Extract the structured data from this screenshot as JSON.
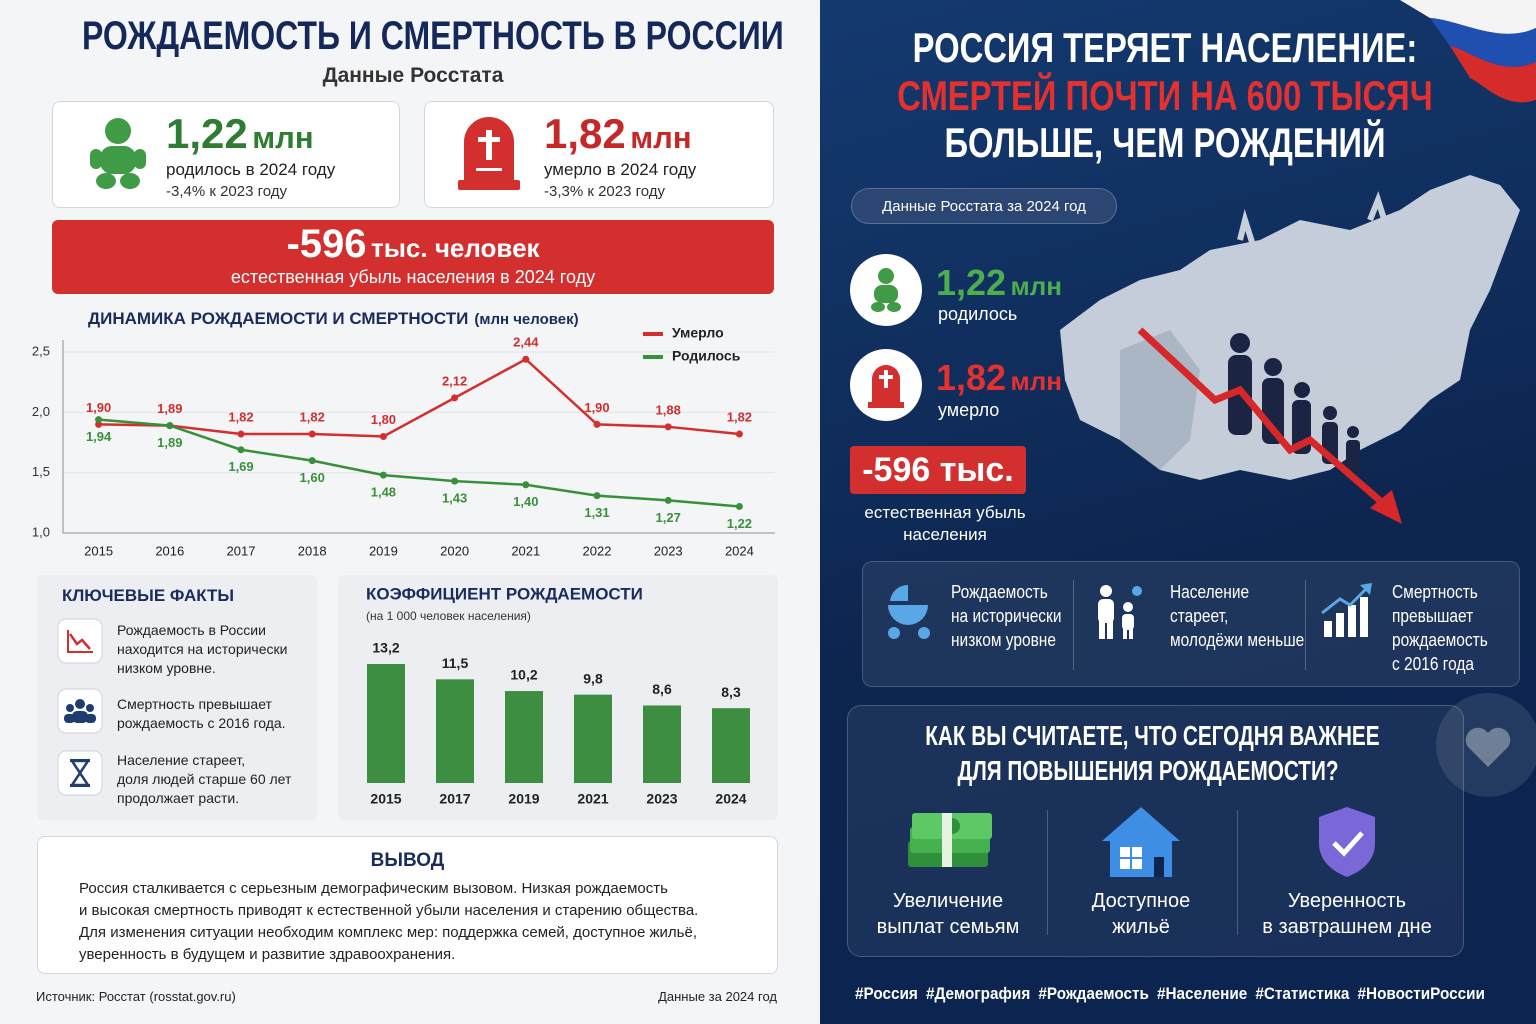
{
  "left": {
    "title": "РОЖДАЕМОСТЬ И СМЕРТНОСТЬ В РОССИИ",
    "subtitle": "Данные Росстата",
    "stats": [
      {
        "value": "1,22",
        "unit": "млн",
        "label": "родилось в 2024 году",
        "change": "-3,4% к 2023 году"
      },
      {
        "value": "1,82",
        "unit": "млн",
        "label": "умерло в 2024 году",
        "change": "-3,3% к 2023 году"
      }
    ],
    "banner": {
      "value": "-596",
      "unit": "тыс. человек",
      "label": "естественная убыль населения в 2024 году"
    },
    "facts": {
      "title": "КЛЮЧЕВЫЕ ФАКТЫ",
      "items": [
        [
          "Рождаемость в России",
          "находится на исторически",
          "низком уровне."
        ],
        [
          "Смертность превышает",
          "рождаемость с 2016 года."
        ],
        [
          "Население стареет,",
          "доля людей старше 60 лет",
          "продолжает расти."
        ]
      ]
    },
    "conclusion": {
      "title": "ВЫВОД",
      "lines": [
        "Россия сталкивается с серьезным демографическим вызовом. Низкая рождаемость",
        "и высокая смертность приводят к естественной убыли населения и старению общества.",
        "Для изменения ситуации необходим комплекс мер: поддержка семей, доступное жильё,",
        "уверенность в будущем и развитие здравоохранения."
      ]
    },
    "source": "Источник: Росстат (rosstat.gov.ru)",
    "date": "Данные за 2024 год"
  },
  "chart_data": [
    {
      "type": "line",
      "title": "ДИНАМИКА РОЖДАЕМОСТИ И СМЕРТНОСТИ",
      "unit": "(млн человек)",
      "x": [
        2015,
        2016,
        2017,
        2018,
        2019,
        2020,
        2021,
        2022,
        2023,
        2024
      ],
      "xlim": [
        2014.5,
        2024.5
      ],
      "xticks": [
        2015,
        2016,
        2017,
        2018,
        2019,
        2020,
        2021,
        2022,
        2023,
        2024
      ],
      "ylim": [
        1,
        2.5
      ],
      "yticks": [
        {
          "value": 1,
          "label": "1,0"
        },
        {
          "value": 1.5,
          "label": "1,5"
        },
        {
          "value": 2,
          "label": "2,0"
        },
        {
          "value": 2.5,
          "label": "2,5"
        }
      ],
      "grid": true,
      "legend": "top-right",
      "series": [
        {
          "name": "Умерло",
          "color": "#d32f2f",
          "values": [
            1.9,
            1.89,
            1.82,
            1.82,
            1.8,
            2.12,
            2.44,
            1.9,
            1.88,
            1.82
          ],
          "value_labels": [
            "1,90",
            "1,89",
            "1,82",
            "1,82",
            "1,80",
            "2,12",
            "2,44",
            "1,90",
            "1,88",
            "1,82"
          ]
        },
        {
          "name": "Родилось",
          "color": "#3a8f3a",
          "values": [
            1.94,
            1.89,
            1.69,
            1.6,
            1.48,
            1.43,
            1.4,
            1.31,
            1.27,
            1.22
          ],
          "value_labels": [
            "1,94",
            "1,89",
            "1,69",
            "1,60",
            "1,48",
            "1,43",
            "1,40",
            "1,31",
            "1,27",
            "1,22"
          ]
        }
      ]
    },
    {
      "type": "bar",
      "title": "КОЭФФИЦИЕНТ РОЖДАЕМОСТИ",
      "subtitle": "(на 1 000 человек населения)",
      "categories": [
        "2015",
        "2017",
        "2019",
        "2021",
        "2023",
        "2024"
      ],
      "values": [
        13.2,
        11.5,
        10.2,
        9.8,
        8.6,
        8.3
      ],
      "value_labels": [
        "13,2",
        "11,5",
        "10,2",
        "9,8",
        "8,6",
        "8,3"
      ],
      "color": "#3e8e41"
    }
  ],
  "right": {
    "title": [
      "РОССИЯ ТЕРЯЕТ НАСЕЛЕНИЕ:",
      "СМЕРТЕЙ ПОЧТИ НА 600 ТЫСЯЧ",
      "БОЛЬШЕ, ЧЕМ РОЖДЕНИЙ"
    ],
    "badge": "Данные Росстата за 2024 год",
    "stats": [
      {
        "value": "1,22",
        "unit": "млн",
        "label": "родилось"
      },
      {
        "value": "1,82",
        "unit": "млн",
        "label": "умерло"
      }
    ],
    "loss": {
      "value": "-596 тыс.",
      "label": [
        "естественная убыль",
        "населения"
      ]
    },
    "features": [
      [
        "Рождаемость",
        "на исторически",
        "низком уровне"
      ],
      [
        "Население",
        "стареет,",
        "молодёжи меньше"
      ],
      [
        "Смертность",
        "превышает",
        "рождаемость",
        "с 2016 года"
      ]
    ],
    "poll": {
      "question": [
        "КАК ВЫ СЧИТАЕТЕ, ЧТО СЕГОДНЯ ВАЖНЕЕ",
        "ДЛЯ ПОВЫШЕНИЯ РОЖДАЕМОСТИ?"
      ],
      "options": [
        [
          "Увеличение",
          "выплат семьям"
        ],
        [
          "Доступное",
          "жильё"
        ],
        [
          "Уверенность",
          "в завтрашнем дне"
        ]
      ]
    },
    "hashtags": [
      "#Россия",
      "#Демография",
      "#Рождаемость",
      "#Население",
      "#Статистика",
      "#НовостиРоссии"
    ]
  }
}
